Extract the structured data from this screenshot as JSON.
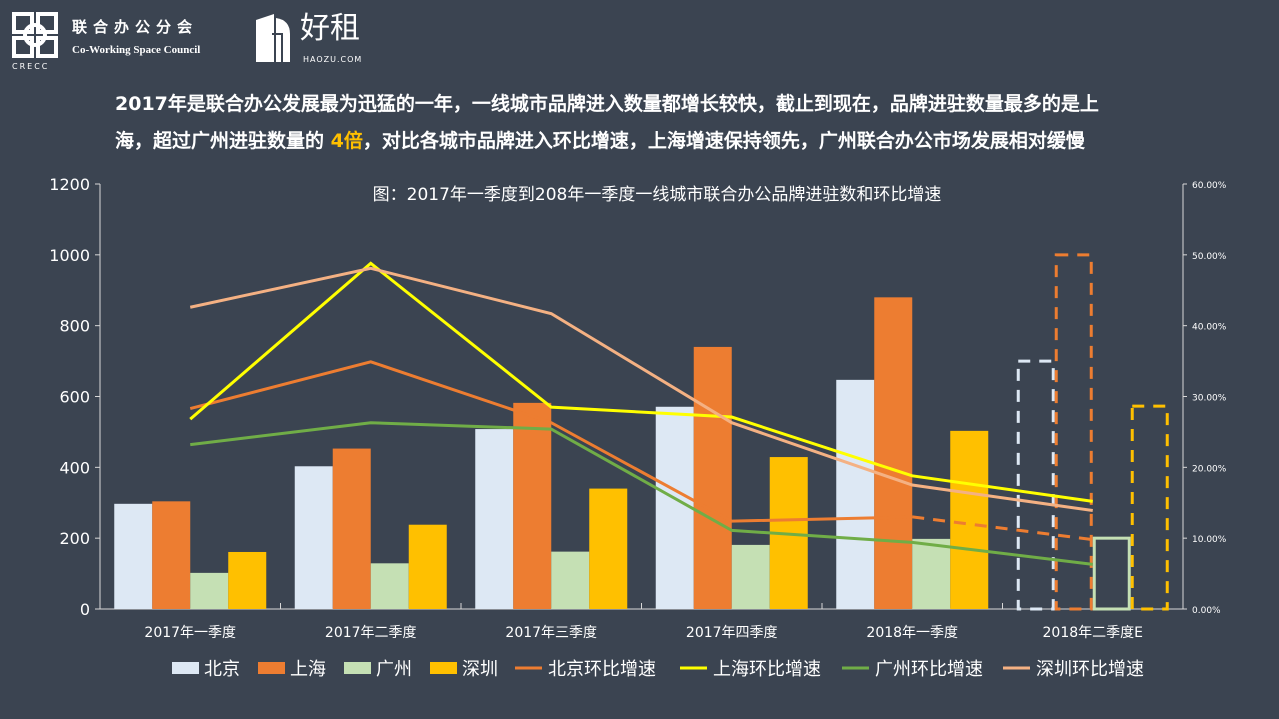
{
  "header": {
    "logo1_cn": "联合办公分会",
    "logo1_en": "Co-Working Space Council",
    "logo1_abbr": "CRECC",
    "logo2_cn": "好租",
    "logo2_en": "HAOZU.COM"
  },
  "headline": {
    "line1": "2017年是联合办公发展最为迅猛的一年，一线城市品牌进入数量都增长较快，截止到现在，品牌进驻数量最多的是上",
    "line2_a": "海，超过广州进驻数量的 ",
    "line2_accent": "4倍",
    "line2_b": "，对比各城市品牌进入环比增速，上海增速保持领先，广州联合办公市场发展相对缓慢"
  },
  "chart_data": {
    "type": "bar+line",
    "title": "图：2017年一季度到208年一季度一线城市联合办公品牌进驻数和环比增速",
    "categories": [
      "2017年一季度",
      "2017年二季度",
      "2017年三季度",
      "2017年四季度",
      "2018年一季度",
      "2018年二季度E"
    ],
    "estimated_category_index": 5,
    "y_left": {
      "min": 0,
      "max": 1200,
      "ticks": [
        "0",
        "200",
        "400",
        "600",
        "800",
        "1000",
        "1200"
      ]
    },
    "y_right": {
      "min": 0,
      "max": 60,
      "ticks": [
        "0.00%",
        "10.00%",
        "20.00%",
        "30.00%",
        "40.00%",
        "50.00%",
        "60.00%"
      ]
    },
    "bar_series": [
      {
        "name": "北京",
        "color": "#dde8f4",
        "values": [
          297,
          403,
          508,
          571,
          647,
          700
        ]
      },
      {
        "name": "上海",
        "color": "#ed7d31",
        "values": [
          304,
          453,
          582,
          740,
          880,
          1000
        ]
      },
      {
        "name": "广州",
        "color": "#c5e0b4",
        "values": [
          102,
          129,
          162,
          181,
          198,
          200
        ]
      },
      {
        "name": "深圳",
        "color": "#ffc000",
        "values": [
          161,
          238,
          340,
          429,
          503,
          573
        ]
      }
    ],
    "line_series": [
      {
        "name": "北京环比增速",
        "color": "#ed7d31",
        "values": [
          28.3,
          34.9,
          26.3,
          12.4,
          13.0,
          9.8
        ],
        "dashed_last_segment": true
      },
      {
        "name": "上海环比增速",
        "color": "#ffff00",
        "values": [
          26.8,
          48.8,
          28.5,
          27.1,
          18.8,
          15.2
        ]
      },
      {
        "name": "广州环比增速",
        "color": "#70ad47",
        "values": [
          23.2,
          26.3,
          25.4,
          11.1,
          9.4,
          6.3
        ]
      },
      {
        "name": "深圳环比增速",
        "color": "#f4b183",
        "values": [
          42.6,
          48.1,
          41.7,
          26.3,
          17.5,
          13.9
        ]
      }
    ],
    "legend": "bottom",
    "grid": false
  }
}
